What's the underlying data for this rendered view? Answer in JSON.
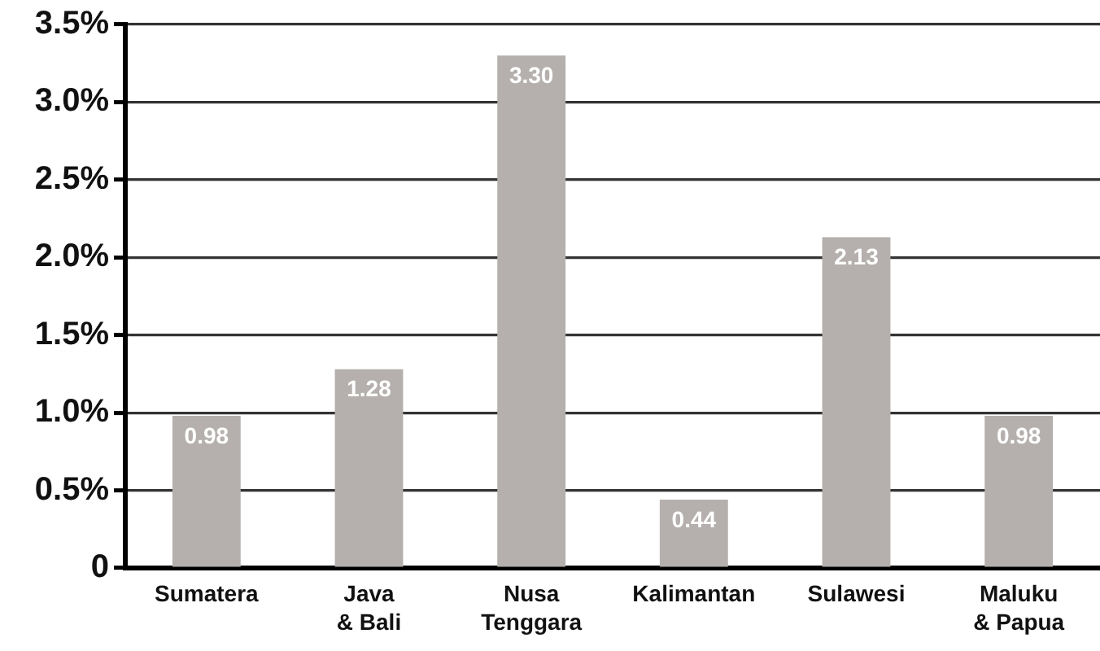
{
  "chart_data": {
    "type": "bar",
    "categories": [
      "Sumatera",
      "Java\n& Bali",
      "Nusa\nTenggara",
      "Kalimantan",
      "Sulawesi",
      "Maluku\n& Papua"
    ],
    "values": [
      0.98,
      1.28,
      3.3,
      0.44,
      2.13,
      0.98
    ],
    "value_labels": [
      "0.98",
      "1.28",
      "3.30",
      "0.44",
      "2.13",
      "0.98"
    ],
    "color": "#b5b0ad",
    "ylim": [
      0,
      3.5
    ],
    "yticks": [
      0,
      {
        "value": 0.5,
        "label": "0.5%"
      },
      {
        "value": 1,
        "label": "1.0%"
      },
      {
        "value": 1.5,
        "label": "1.5%"
      },
      {
        "value": 2,
        "label": "2.0%"
      },
      {
        "value": 2.5,
        "label": "2.5%"
      },
      {
        "value": 3,
        "label": "3.0%"
      },
      {
        "value": 3.5,
        "label": "3.5%"
      }
    ],
    "grid": "y"
  }
}
